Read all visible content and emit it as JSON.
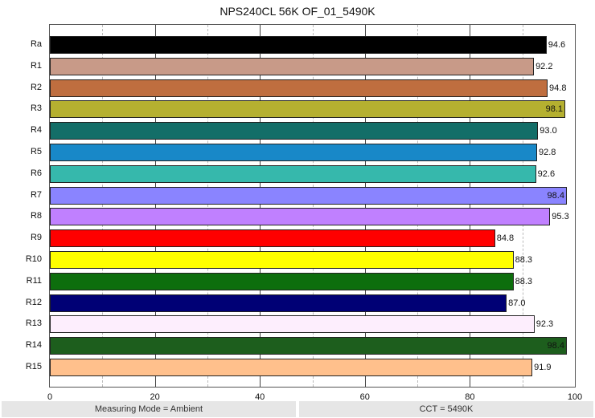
{
  "chart_data": {
    "type": "bar",
    "orientation": "horizontal",
    "title": "NPS240CL 56K OF_01_5490K",
    "xlabel": "",
    "ylabel": "",
    "xlim": [
      0,
      100
    ],
    "xticks": [
      "0",
      "20",
      "40",
      "60",
      "80",
      "100"
    ],
    "grid": true,
    "categories": [
      "Ra",
      "R1",
      "R2",
      "R3",
      "R4",
      "R5",
      "R6",
      "R7",
      "R8",
      "R9",
      "R10",
      "R11",
      "R12",
      "R13",
      "R14",
      "R15"
    ],
    "values": [
      94.6,
      92.2,
      94.8,
      98.1,
      93.0,
      92.8,
      92.6,
      98.4,
      95.3,
      84.8,
      88.3,
      88.3,
      87.0,
      92.3,
      98.4,
      91.9
    ],
    "labels": [
      "94.6",
      "92.2",
      "94.8",
      "98.1",
      "93.0",
      "92.8",
      "92.6",
      "98.4",
      "95.3",
      "84.8",
      "88.3",
      "88.3",
      "87.0",
      "92.3",
      "98.4",
      "91.9"
    ],
    "colors": [
      "#000000",
      "#c89a88",
      "#bf6e3f",
      "#b5b030",
      "#136e68",
      "#1888c8",
      "#36b8ac",
      "#8a84ff",
      "#c080ff",
      "#ff0000",
      "#ffff00",
      "#0d6e0d",
      "#000075",
      "#fdeefd",
      "#1d5e1d",
      "#ffc08c"
    ]
  },
  "footer": {
    "left": "Measuring Mode = Ambient",
    "right": "CCT = 5490K"
  }
}
